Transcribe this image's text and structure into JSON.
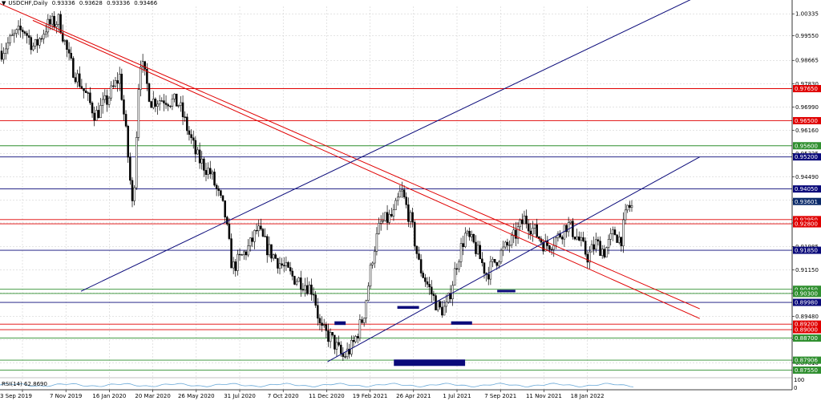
{
  "header": {
    "symbol": "USDCHF,Daily",
    "ohlc": [
      "0.93336",
      "0.93628",
      "0.93336",
      "0.93466"
    ]
  },
  "rsi": {
    "label": "RSI(14)",
    "value": "62.8690",
    "scale_top": "100",
    "scale_bottom": "0"
  },
  "colors": {
    "candle": "#000000",
    "red_level": "#e00000",
    "green_level": "#2f8f2f",
    "blue_level": "#0a0a7a",
    "grid": "#c8c8c8",
    "last_price": "#0a2a6a"
  },
  "chart_data": {
    "type": "candlestick",
    "title": "USDCHF,Daily",
    "ylim": [
      0.8742,
      1.006
    ],
    "y_tick_labels": [
      "1.00335",
      "0.99550",
      "0.98665",
      "0.97830",
      "0.96990",
      "0.96160",
      "0.95325",
      "0.94490",
      "0.93655",
      "0.92830",
      "0.91985",
      "0.91150",
      "0.90315",
      "0.89480",
      "0.88645",
      "0.87810"
    ],
    "x_tick_labels": [
      "3 Sep 2019",
      "7 Nov 2019",
      "16 Jan 2020",
      "20 Mar 2020",
      "26 May 2020",
      "31 Jul 2020",
      "7 Oct 2020",
      "11 Dec 2020",
      "19 Feb 2021",
      "26 Apr 2021",
      "1 Jul 2021",
      "7 Sep 2021",
      "11 Nov 2021",
      "18 Jan 2022"
    ],
    "levels": [
      {
        "label": "0.97650",
        "value": 0.9765,
        "color": "red"
      },
      {
        "label": "0.96500",
        "value": 0.965,
        "color": "red"
      },
      {
        "label": "0.95600",
        "value": 0.956,
        "color": "green"
      },
      {
        "label": "0.95200",
        "value": 0.952,
        "color": "blue"
      },
      {
        "label": "0.94050",
        "value": 0.9405,
        "color": "blue"
      },
      {
        "label": "0.93601",
        "value": 0.93601,
        "color": "last"
      },
      {
        "label": "0.92950",
        "value": 0.9295,
        "color": "red"
      },
      {
        "label": "0.92800",
        "value": 0.928,
        "color": "red"
      },
      {
        "label": "0.91850",
        "value": 0.9185,
        "color": "blue"
      },
      {
        "label": "0.90450",
        "value": 0.9045,
        "color": "green"
      },
      {
        "label": "0.90300",
        "value": 0.903,
        "color": "green"
      },
      {
        "label": "0.89980",
        "value": 0.8998,
        "color": "blue"
      },
      {
        "label": "0.89200",
        "value": 0.892,
        "color": "red"
      },
      {
        "label": "0.89000",
        "value": 0.89,
        "color": "red"
      },
      {
        "label": "0.88700",
        "value": 0.887,
        "color": "green"
      },
      {
        "label": "0.87906",
        "value": 0.87906,
        "color": "green"
      },
      {
        "label": "0.87550",
        "value": 0.8755,
        "color": "green"
      }
    ],
    "price_path": [
      [
        "2019-09-03",
        0.99
      ],
      [
        "2019-09-20",
        0.995
      ],
      [
        "2019-10-05",
        0.998
      ],
      [
        "2019-10-20",
        0.991
      ],
      [
        "2019-11-07",
        0.999
      ],
      [
        "2019-11-25",
        1.001
      ],
      [
        "2019-12-10",
        0.986
      ],
      [
        "2019-12-28",
        0.977
      ],
      [
        "2020-01-16",
        0.967
      ],
      [
        "2020-02-01",
        0.972
      ],
      [
        "2020-02-20",
        0.981
      ],
      [
        "2020-03-01",
        0.958
      ],
      [
        "2020-03-10",
        0.932
      ],
      [
        "2020-03-20",
        0.988
      ],
      [
        "2020-04-05",
        0.972
      ],
      [
        "2020-04-25",
        0.973
      ],
      [
        "2020-05-15",
        0.971
      ],
      [
        "2020-05-26",
        0.963
      ],
      [
        "2020-06-10",
        0.952
      ],
      [
        "2020-06-30",
        0.946
      ],
      [
        "2020-07-20",
        0.932
      ],
      [
        "2020-07-31",
        0.912
      ],
      [
        "2020-08-10",
        0.915
      ],
      [
        "2020-08-25",
        0.92
      ],
      [
        "2020-09-05",
        0.926
      ],
      [
        "2020-09-20",
        0.919
      ],
      [
        "2020-10-07",
        0.914
      ],
      [
        "2020-10-25",
        0.909
      ],
      [
        "2020-11-10",
        0.907
      ],
      [
        "2020-11-25",
        0.904
      ],
      [
        "2020-12-05",
        0.89
      ],
      [
        "2020-12-20",
        0.887
      ],
      [
        "2021-01-06",
        0.88
      ],
      [
        "2021-01-20",
        0.884
      ],
      [
        "2021-02-05",
        0.895
      ],
      [
        "2021-02-19",
        0.918
      ],
      [
        "2021-03-01",
        0.928
      ],
      [
        "2021-03-20",
        0.931
      ],
      [
        "2021-03-31",
        0.94
      ],
      [
        "2021-04-15",
        0.928
      ],
      [
        "2021-04-26",
        0.913
      ],
      [
        "2021-05-10",
        0.905
      ],
      [
        "2021-05-25",
        0.897
      ],
      [
        "2021-06-05",
        0.898
      ],
      [
        "2021-06-20",
        0.915
      ],
      [
        "2021-07-01",
        0.924
      ],
      [
        "2021-07-15",
        0.92
      ],
      [
        "2021-08-01",
        0.91
      ],
      [
        "2021-08-20",
        0.917
      ],
      [
        "2021-09-07",
        0.922
      ],
      [
        "2021-09-25",
        0.93
      ],
      [
        "2021-10-10",
        0.925
      ],
      [
        "2021-10-25",
        0.92
      ],
      [
        "2021-11-11",
        0.923
      ],
      [
        "2021-11-25",
        0.928
      ],
      [
        "2021-12-10",
        0.923
      ],
      [
        "2021-12-25",
        0.916
      ],
      [
        "2022-01-05",
        0.921
      ],
      [
        "2022-01-18",
        0.918
      ],
      [
        "2022-02-01",
        0.925
      ],
      [
        "2022-02-10",
        0.922
      ],
      [
        "2022-02-20",
        0.934
      ]
    ],
    "trendlines": [
      {
        "color": "red",
        "from": [
          "2019-09-03",
          1.007
        ],
        "to": [
          "2022-06-01",
          0.8975
        ]
      },
      {
        "color": "red",
        "from": [
          "2019-10-20",
          1.001
        ],
        "to": [
          "2022-06-01",
          0.894
        ]
      },
      {
        "color": "blue",
        "from": [
          "2019-12-28",
          0.9038
        ],
        "to": [
          "2022-06-01",
          1.01
        ]
      },
      {
        "color": "blue",
        "from": [
          "2020-12-15",
          0.8785
        ],
        "to": [
          "2022-06-01",
          0.952
        ]
      }
    ],
    "zones": [
      {
        "from": "2020-12-25",
        "to": "2021-01-10",
        "low": 0.8917,
        "high": 0.893
      },
      {
        "from": "2021-03-25",
        "to": "2021-04-25",
        "low": 0.8975,
        "high": 0.8985
      },
      {
        "from": "2021-06-10",
        "to": "2021-07-10",
        "low": 0.8918,
        "high": 0.893
      },
      {
        "from": "2021-08-15",
        "to": "2021-09-10",
        "low": 0.9035,
        "high": 0.9043
      },
      {
        "from": "2021-03-20",
        "to": "2021-06-30",
        "low": 0.877,
        "high": 0.8793
      }
    ],
    "rsi_value": 62.869
  }
}
